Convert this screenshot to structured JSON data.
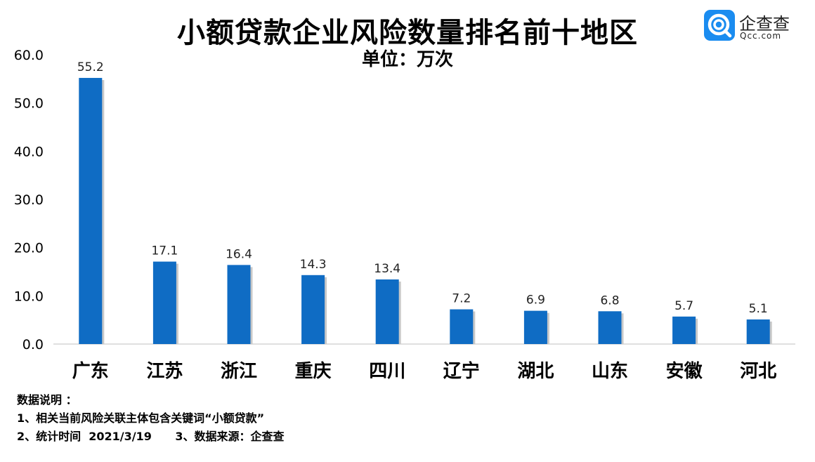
{
  "title": "小额贷款企业风险数量排名前十地区",
  "subtitle": "单位：万次",
  "logo": {
    "name": "企查查",
    "domain": "Qcc.com",
    "icon": "qcc-logo-icon",
    "color": "#1a8cf0"
  },
  "chart_data": {
    "type": "bar",
    "categories": [
      "广东",
      "江苏",
      "浙江",
      "重庆",
      "四川",
      "辽宁",
      "湖北",
      "山东",
      "安徽",
      "河北"
    ],
    "values": [
      55.2,
      17.1,
      16.4,
      14.3,
      13.4,
      7.2,
      6.9,
      6.8,
      5.7,
      5.1
    ],
    "value_labels": [
      "55.2",
      "17.1",
      "16.4",
      "14.3",
      "13.4",
      "7.2",
      "6.9",
      "6.8",
      "5.7",
      "5.1"
    ],
    "yticks": [
      "0.0",
      "10.0",
      "20.0",
      "30.0",
      "40.0",
      "50.0",
      "60.0"
    ],
    "ylim": [
      0,
      60
    ],
    "grid": false,
    "bar_color": "#0f6cc4"
  },
  "notes": {
    "heading": "数据说明 ：",
    "line1": "1、相关当前风险关联主体包含关键词“小额贷款”",
    "line2": "2、统计时间  2021/3/19      3、数据来源：企查查"
  }
}
